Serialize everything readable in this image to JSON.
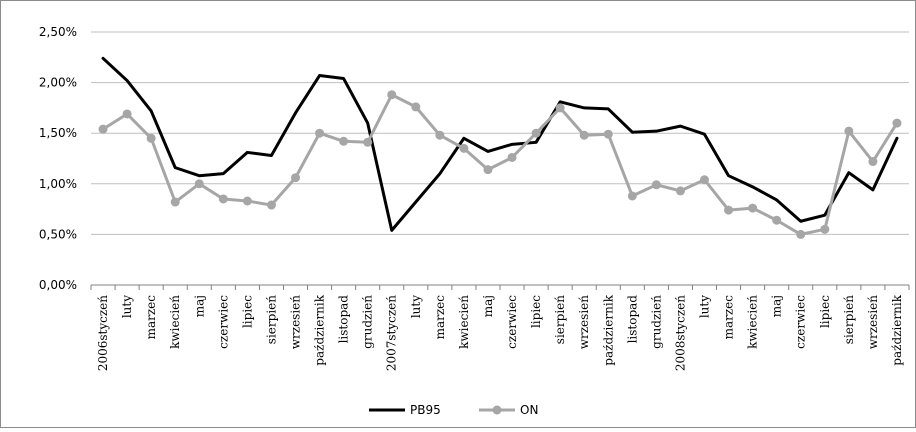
{
  "chart_data": {
    "type": "line",
    "title": "",
    "xlabel": "",
    "ylabel": "",
    "ylim": [
      0,
      0.025
    ],
    "yticks": [
      "0,00%",
      "0,50%",
      "1,00%",
      "1,50%",
      "2,00%",
      "2,50%"
    ],
    "grid": true,
    "legend_position": "bottom",
    "categories": [
      "2006styczeń",
      "luty",
      "marzec",
      "kwiecień",
      "maj",
      "czerwiec",
      "lipiec",
      "sierpień",
      "wrzesień",
      "październik",
      "listopad",
      "grudzień",
      "2007styczeń",
      "luty",
      "marzec",
      "kwiecień",
      "maj",
      "czerwiec",
      "lipiec",
      "sierpień",
      "wrzesień",
      "październik",
      "listopad",
      "grudzień",
      "2008styczeń",
      "luty",
      "marzec",
      "kwiecień",
      "maj",
      "czerwiec",
      "lipiec",
      "sierpień",
      "wrzesień",
      "październik"
    ],
    "series": [
      {
        "name": "PB95",
        "color": "#000000",
        "markers": false,
        "values": [
          0.0224,
          0.0202,
          0.0172,
          0.0116,
          0.0108,
          0.011,
          0.0131,
          0.0128,
          0.017,
          0.0207,
          0.0204,
          0.016,
          0.0054,
          0.0082,
          0.011,
          0.0145,
          0.0132,
          0.0139,
          0.0141,
          0.0181,
          0.0175,
          0.0174,
          0.0151,
          0.0152,
          0.0157,
          0.0149,
          0.0108,
          0.0097,
          0.0084,
          0.0063,
          0.0069,
          0.0111,
          0.0094,
          0.0145
        ]
      },
      {
        "name": "ON",
        "color": "#a6a6a6",
        "markers": true,
        "values": [
          0.0154,
          0.0169,
          0.0145,
          0.0082,
          0.01,
          0.0085,
          0.0083,
          0.0079,
          0.0106,
          0.015,
          0.0142,
          0.0141,
          0.0188,
          0.0176,
          0.0148,
          0.0135,
          0.0114,
          0.0126,
          0.015,
          0.0175,
          0.0148,
          0.0149,
          0.0088,
          0.0099,
          0.0093,
          0.0104,
          0.0074,
          0.0076,
          0.0064,
          0.005,
          0.0055,
          0.0152,
          0.0122,
          0.016
        ]
      }
    ]
  }
}
